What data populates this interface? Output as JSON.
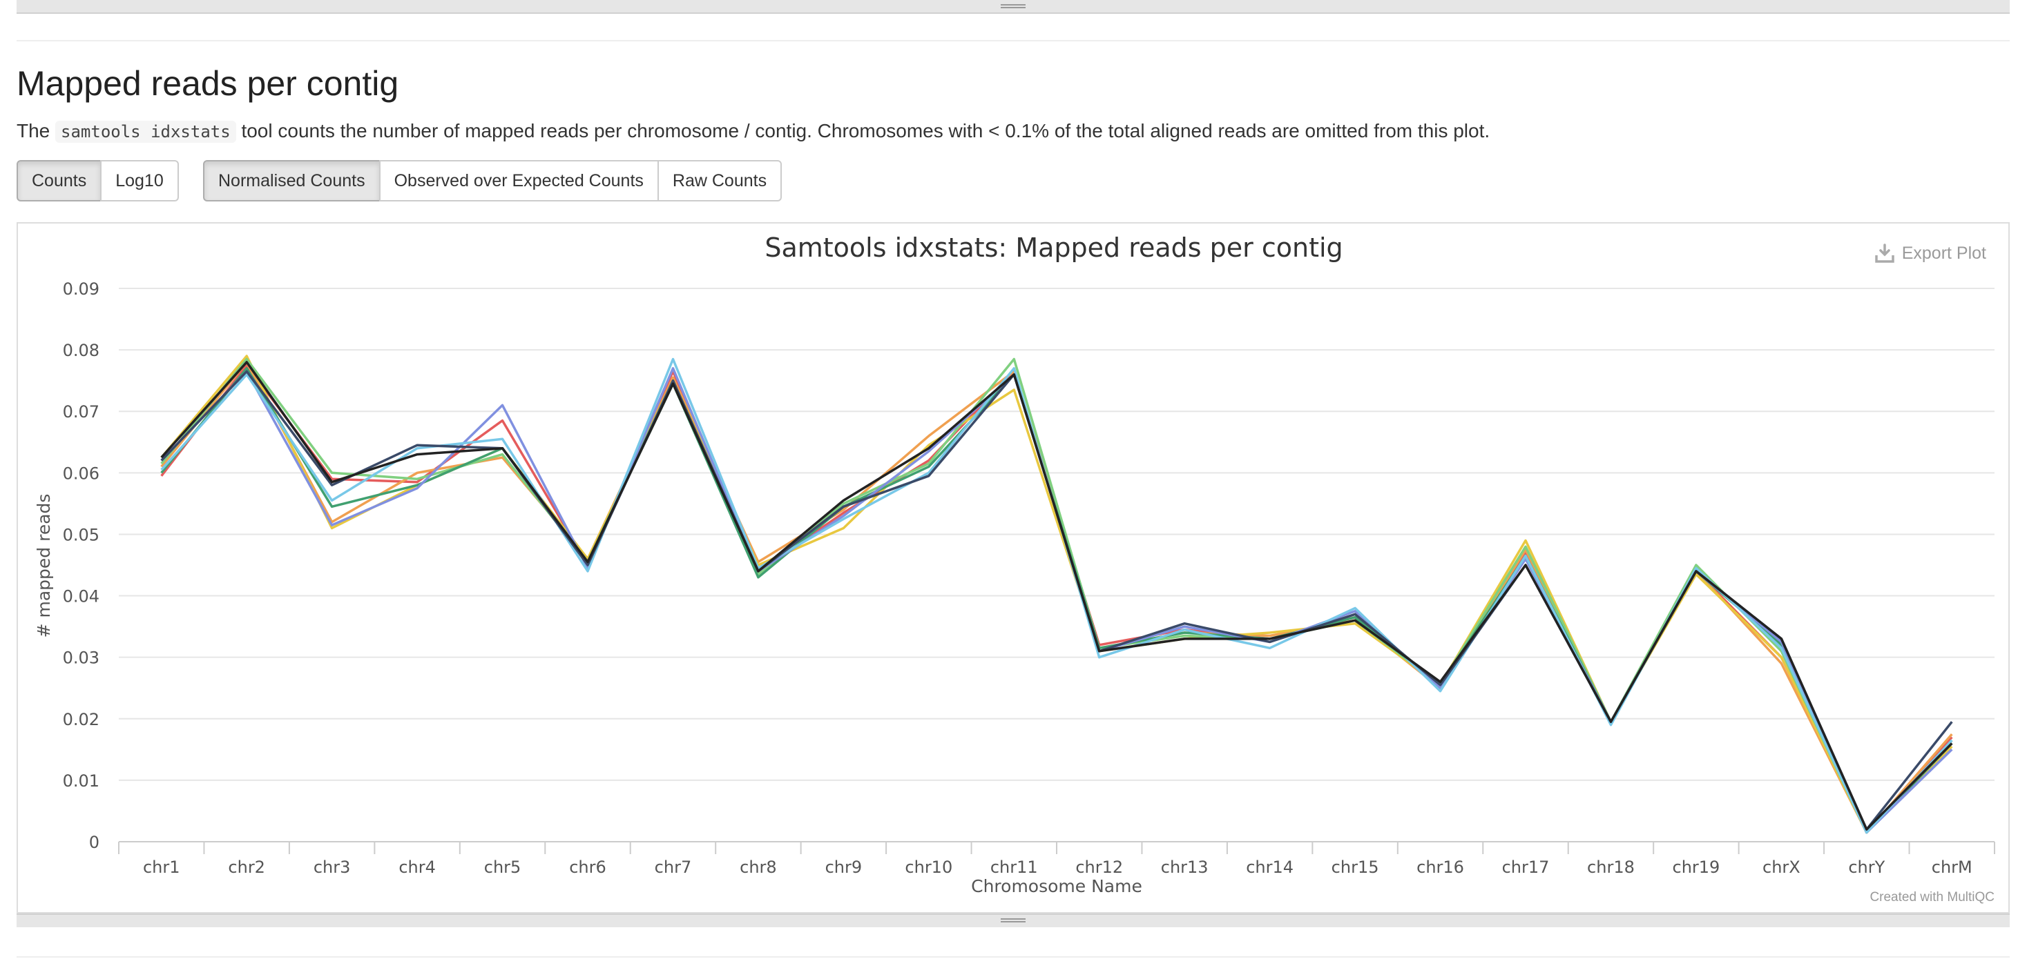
{
  "section": {
    "title": "Mapped reads per contig",
    "desc_before": "The ",
    "desc_code": "samtools idxstats",
    "desc_after": " tool counts the number of mapped reads per chromosome / contig. Chromosomes with < 0.1% of the total aligned reads are omitted from this plot."
  },
  "scale_buttons": [
    {
      "label": "Counts",
      "active": true
    },
    {
      "label": "Log10",
      "active": false
    }
  ],
  "mode_buttons": [
    {
      "label": "Normalised Counts",
      "active": true
    },
    {
      "label": "Observed over Expected Counts",
      "active": false
    },
    {
      "label": "Raw Counts",
      "active": false
    }
  ],
  "plot": {
    "export_label": "Export Plot",
    "export_icon": "download-icon",
    "credit": "Created with MultiQC"
  },
  "chart_data": {
    "type": "line",
    "title": "Samtools idxstats: Mapped reads per contig",
    "xlabel": "Chromosome Name",
    "ylabel": "# mapped reads",
    "ylim": [
      0,
      0.09
    ],
    "yticks": [
      0,
      0.01,
      0.02,
      0.03,
      0.04,
      0.05,
      0.06,
      0.07,
      0.08,
      0.09
    ],
    "ytick_labels": [
      "0",
      "0.01",
      "0.02",
      "0.03",
      "0.04",
      "0.05",
      "0.06",
      "0.07",
      "0.08",
      "0.09"
    ],
    "grid": true,
    "legend": "none",
    "categories": [
      "chr1",
      "chr2",
      "chr3",
      "chr4",
      "chr5",
      "chr6",
      "chr7",
      "chr8",
      "chr9",
      "chr10",
      "chr11",
      "chr12",
      "chr13",
      "chr14",
      "chr15",
      "chr16",
      "chr17",
      "chr18",
      "chr19",
      "chrX",
      "chrY",
      "chrM"
    ],
    "series": [
      {
        "color": "#e55c5c",
        "values": [
          0.0595,
          0.0775,
          0.059,
          0.0585,
          0.0685,
          0.045,
          0.0765,
          0.044,
          0.0535,
          0.062,
          0.0765,
          0.032,
          0.0345,
          0.033,
          0.0365,
          0.0255,
          0.047,
          0.0195,
          0.044,
          0.03,
          0.0015,
          0.017
        ]
      },
      {
        "color": "#f0a050",
        "values": [
          0.061,
          0.078,
          0.052,
          0.06,
          0.0625,
          0.046,
          0.0755,
          0.0455,
          0.054,
          0.066,
          0.0765,
          0.0315,
          0.034,
          0.0335,
          0.036,
          0.025,
          0.0475,
          0.0195,
          0.044,
          0.029,
          0.0015,
          0.0175
        ]
      },
      {
        "color": "#e8c840",
        "values": [
          0.0625,
          0.079,
          0.051,
          0.058,
          0.064,
          0.046,
          0.075,
          0.045,
          0.051,
          0.0645,
          0.0735,
          0.031,
          0.033,
          0.034,
          0.0355,
          0.0255,
          0.049,
          0.0195,
          0.0435,
          0.03,
          0.0015,
          0.0155
        ]
      },
      {
        "color": "#80d080",
        "values": [
          0.0615,
          0.0785,
          0.06,
          0.059,
          0.063,
          0.0455,
          0.075,
          0.0435,
          0.055,
          0.0615,
          0.0785,
          0.0315,
          0.0335,
          0.033,
          0.036,
          0.0255,
          0.048,
          0.0195,
          0.045,
          0.031,
          0.0015,
          0.0165
        ]
      },
      {
        "color": "#40a070",
        "values": [
          0.06,
          0.077,
          0.0545,
          0.058,
          0.064,
          0.0455,
          0.0745,
          0.043,
          0.0545,
          0.061,
          0.076,
          0.0315,
          0.034,
          0.033,
          0.0365,
          0.0255,
          0.0465,
          0.0195,
          0.044,
          0.032,
          0.0015,
          0.016
        ]
      },
      {
        "color": "#8090e0",
        "values": [
          0.062,
          0.0765,
          0.0515,
          0.0575,
          0.071,
          0.0445,
          0.077,
          0.044,
          0.053,
          0.0635,
          0.076,
          0.031,
          0.035,
          0.0325,
          0.0375,
          0.025,
          0.046,
          0.0195,
          0.044,
          0.0325,
          0.0015,
          0.015
        ]
      },
      {
        "color": "#78c8e8",
        "values": [
          0.0605,
          0.076,
          0.0555,
          0.064,
          0.0655,
          0.044,
          0.0785,
          0.0445,
          0.0525,
          0.06,
          0.077,
          0.03,
          0.0345,
          0.0315,
          0.038,
          0.0245,
          0.0465,
          0.019,
          0.0445,
          0.0315,
          0.0015,
          0.0165
        ]
      },
      {
        "color": "#3a4a68",
        "values": [
          0.062,
          0.0765,
          0.058,
          0.0645,
          0.064,
          0.045,
          0.075,
          0.044,
          0.0545,
          0.0595,
          0.076,
          0.031,
          0.0355,
          0.0325,
          0.037,
          0.0255,
          0.045,
          0.0195,
          0.044,
          0.033,
          0.002,
          0.0195
        ]
      },
      {
        "color": "#222222",
        "values": [
          0.0625,
          0.078,
          0.0585,
          0.063,
          0.064,
          0.0455,
          0.0745,
          0.044,
          0.0555,
          0.064,
          0.076,
          0.031,
          0.033,
          0.033,
          0.036,
          0.026,
          0.045,
          0.0195,
          0.044,
          0.033,
          0.002,
          0.016
        ]
      }
    ]
  }
}
